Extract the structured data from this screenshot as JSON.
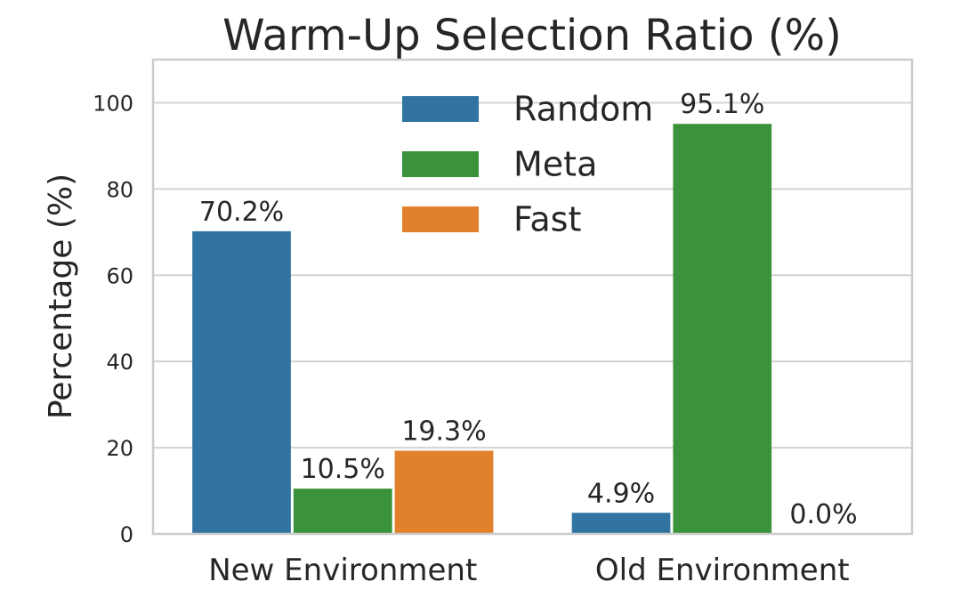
{
  "chart_data": {
    "type": "bar",
    "title": "Warm-Up Selection Ratio (%)",
    "xlabel": "",
    "ylabel": "Percentage (%)",
    "categories": [
      "New Environment",
      "Old Environment"
    ],
    "series": [
      {
        "name": "Random",
        "color": "#3274a1",
        "values": [
          70.2,
          4.9
        ],
        "labels": [
          "70.2%",
          "4.9%"
        ]
      },
      {
        "name": "Meta",
        "color": "#3a923a",
        "values": [
          10.5,
          95.1
        ],
        "labels": [
          "10.5%",
          "95.1%"
        ]
      },
      {
        "name": "Fast",
        "color": "#e1812c",
        "values": [
          19.3,
          0.0
        ],
        "labels": [
          "19.3%",
          "0.0%"
        ]
      }
    ],
    "ylim": [
      0,
      110
    ],
    "yticks": [
      0,
      20,
      40,
      60,
      80,
      100
    ],
    "grid": true,
    "legend_position": "top-center"
  }
}
